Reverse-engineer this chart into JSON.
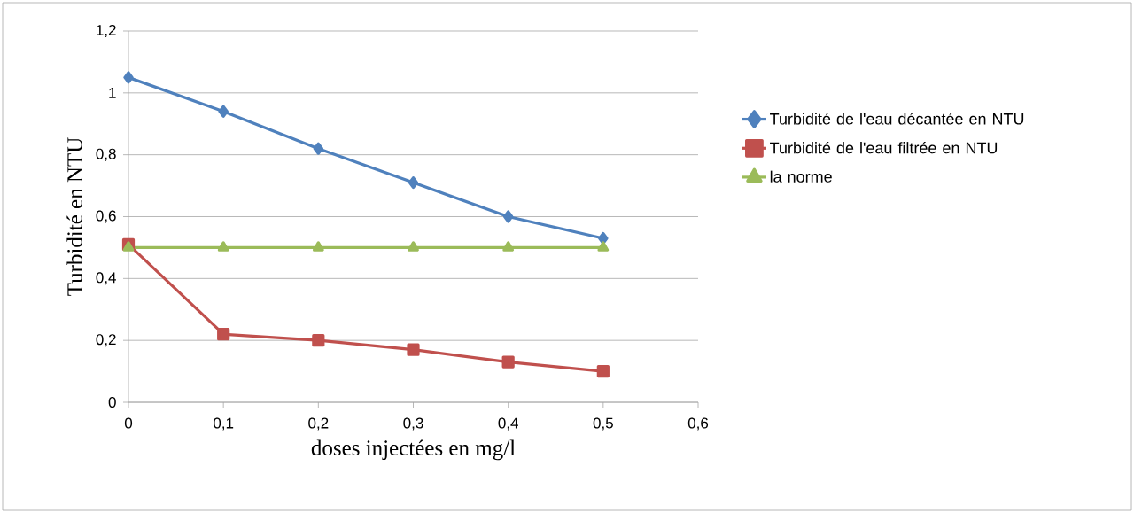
{
  "chart_data": {
    "type": "line",
    "xlabel": "doses injectées en mg/l",
    "ylabel": "Turbidité en NTU",
    "x": [
      0,
      0.1,
      0.2,
      0.3,
      0.4,
      0.5
    ],
    "series": [
      {
        "name": "Turbidité de l'eau décantée en NTU",
        "color": "#4f81bd",
        "marker": "diamond",
        "values": [
          1.05,
          0.94,
          0.82,
          0.71,
          0.6,
          0.53
        ]
      },
      {
        "name": "Turbidité de l'eau filtrée en NTU",
        "color": "#c0504d",
        "marker": "square",
        "values": [
          0.51,
          0.22,
          0.2,
          0.17,
          0.13,
          0.1
        ]
      },
      {
        "name": "la norme",
        "color": "#9bbb59",
        "marker": "triangle",
        "values": [
          0.5,
          0.5,
          0.5,
          0.5,
          0.5,
          0.5
        ]
      }
    ],
    "xlim": [
      0,
      0.6
    ],
    "xticks": [
      0,
      {
        "value": 0.1,
        "label": "0,1"
      },
      {
        "value": 0.2,
        "label": "0,2"
      },
      {
        "value": 0.3,
        "label": "0,3"
      },
      {
        "value": 0.4,
        "label": "0,4"
      },
      {
        "value": 0.5,
        "label": "0,5"
      },
      {
        "value": 0.6,
        "label": "0,6"
      }
    ],
    "ylim": [
      0,
      1.2
    ],
    "yticks": [
      0,
      {
        "value": 0.2,
        "label": "0,2"
      },
      {
        "value": 0.4,
        "label": "0,4"
      },
      {
        "value": 0.6,
        "label": "0,6"
      },
      {
        "value": 0.8,
        "label": "0,8"
      },
      1,
      {
        "value": 1.2,
        "label": "1,2"
      }
    ],
    "grid": "y",
    "legend": "right",
    "line_style": "solid"
  }
}
